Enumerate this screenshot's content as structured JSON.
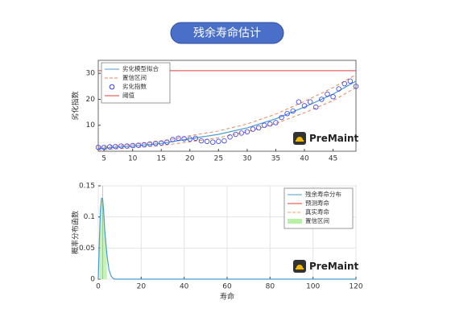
{
  "title": "残余寿命估计",
  "chart_data": [
    {
      "type": "line",
      "ylabel": "劣化指数",
      "watermark": "PreMaint",
      "xlim": [
        4,
        49
      ],
      "xticks": [
        5,
        10,
        15,
        20,
        25,
        30,
        35,
        40,
        45
      ],
      "ylim": [
        0,
        35
      ],
      "yticks": [
        10,
        20,
        30
      ],
      "grid": false,
      "legend": "top-left",
      "series": [
        {
          "name": "劣化模型拟合",
          "style": "line",
          "color": "#4a9bd1",
          "x": [
            4,
            10,
            15,
            20,
            25,
            30,
            35,
            40,
            45,
            49
          ],
          "values": [
            1,
            2,
            3,
            4.8,
            6.5,
            9,
            12.5,
            17,
            22,
            27
          ]
        },
        {
          "name": "置信区间",
          "style": "dashed-pair",
          "color": "#e8845a",
          "x": [
            4,
            10,
            15,
            20,
            25,
            30,
            35,
            40,
            45,
            49
          ],
          "lower": [
            0.5,
            1.3,
            2.2,
            3.6,
            5.2,
            7.5,
            10.7,
            14.8,
            19.5,
            24.5
          ],
          "upper": [
            1.5,
            2.7,
            3.8,
            6,
            7.8,
            10.5,
            14.3,
            19.2,
            24.5,
            29.5
          ]
        },
        {
          "name": "劣化指数",
          "style": "markers",
          "color": "#3b3bf0",
          "x": [
            4,
            5,
            6,
            7,
            8,
            9,
            10,
            11,
            12,
            13,
            14,
            15,
            16,
            17,
            18,
            19,
            20,
            21,
            22,
            23,
            24,
            25,
            26,
            27,
            28,
            29,
            30,
            31,
            32,
            33,
            34,
            35,
            36,
            37,
            38,
            39,
            40,
            41,
            42,
            43,
            44,
            45,
            46,
            47,
            48,
            49
          ],
          "values": [
            1.5,
            1.5,
            1.7,
            1.8,
            2,
            2,
            2.2,
            2.3,
            2.5,
            2.8,
            3,
            3.2,
            3.5,
            4.5,
            5,
            4.8,
            4.7,
            5,
            4,
            3.8,
            3.5,
            3.8,
            4,
            5.5,
            6.5,
            7,
            7.5,
            8.5,
            9,
            10,
            10.5,
            11,
            13,
            14.5,
            15.5,
            19,
            17.5,
            19,
            17,
            20,
            22,
            21,
            24,
            26,
            27,
            25
          ]
        },
        {
          "name": "阈值",
          "style": "hline",
          "color": "#e03c31",
          "value": 31
        }
      ]
    },
    {
      "type": "line",
      "xlabel": "寿命",
      "ylabel": "概率分布函数",
      "watermark": "PreMaint",
      "xlim": [
        0,
        120
      ],
      "xticks": [
        0,
        20,
        40,
        60,
        80,
        100,
        120
      ],
      "ylim": [
        0,
        0.15
      ],
      "yticks": [
        0,
        0.05,
        0.1,
        0.15
      ],
      "grid": true,
      "legend": "top-right",
      "series": [
        {
          "name": "残余寿命分布",
          "style": "line",
          "color": "#4a9bd1",
          "x": [
            0,
            0.5,
            1,
            1.5,
            2,
            2.5,
            3,
            4,
            5,
            6,
            7,
            8,
            120
          ],
          "values": [
            0,
            0.06,
            0.11,
            0.13,
            0.13,
            0.11,
            0.08,
            0.04,
            0.015,
            0.005,
            0.001,
            0,
            0
          ]
        },
        {
          "name": "预测寿命",
          "style": "vline",
          "color": "#e03c31",
          "value": 2
        },
        {
          "name": "真实寿命",
          "style": "vline-dashed",
          "color": "#e8a05a",
          "value": 2
        },
        {
          "name": "置信区间",
          "style": "fill",
          "color": "#b8f0a8",
          "range": [
            0.5,
            4
          ]
        }
      ]
    }
  ]
}
